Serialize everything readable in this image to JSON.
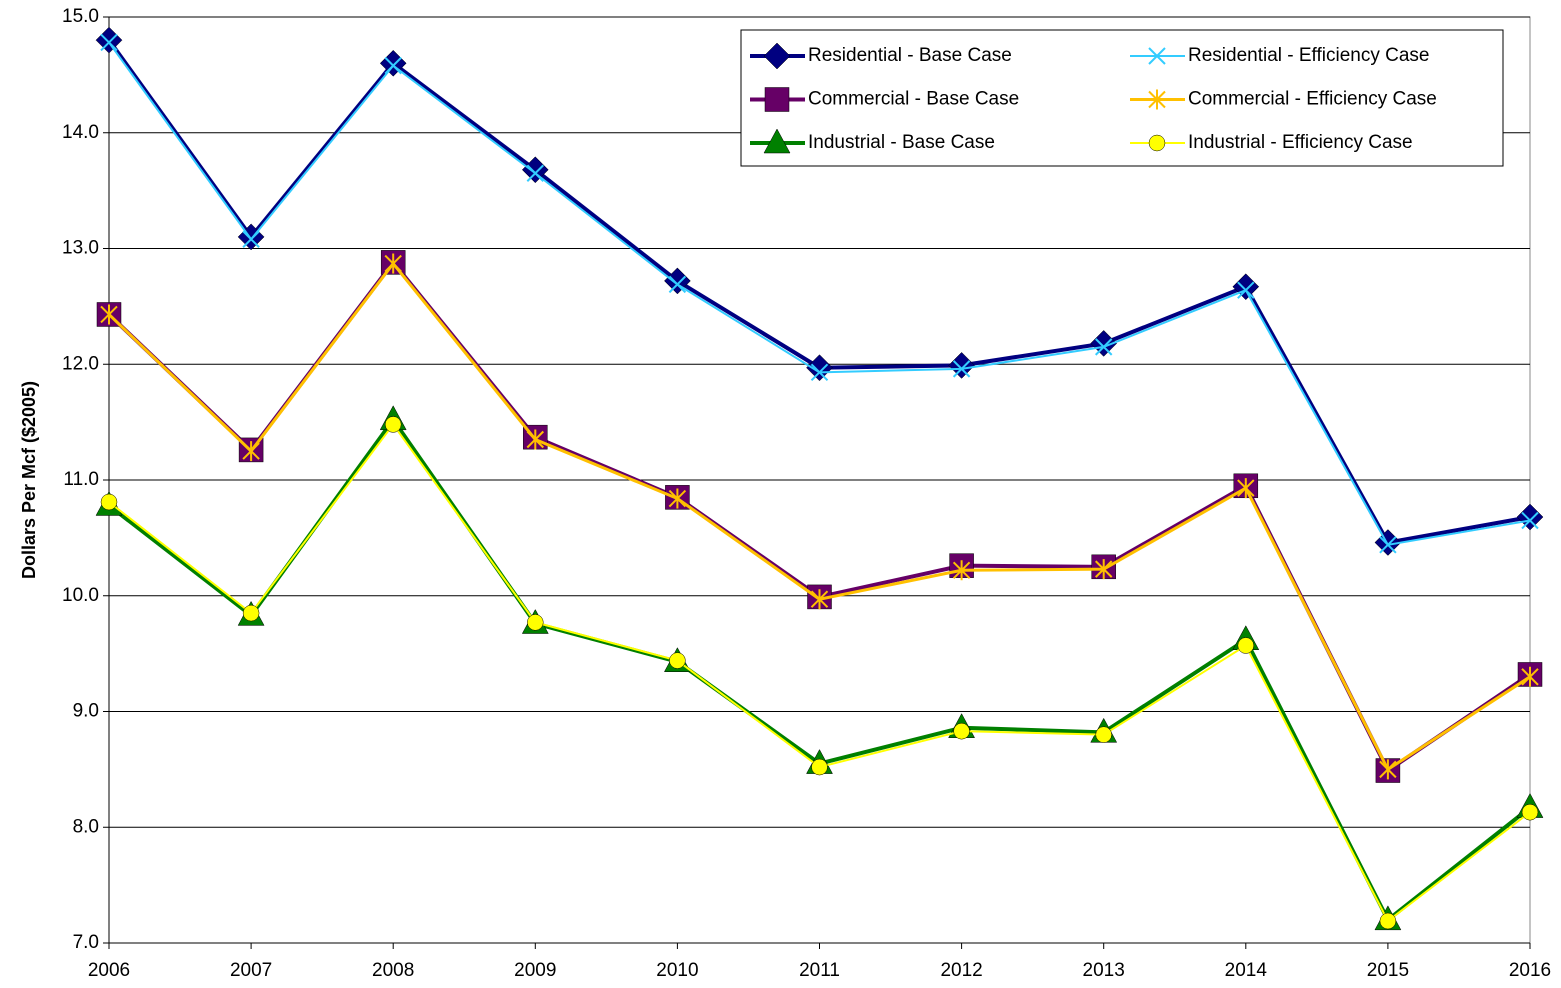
{
  "chart_data": {
    "type": "line",
    "y_label": "Dollars Per Mcf ($2005)",
    "categories": [
      "2006",
      "2007",
      "2008",
      "2009",
      "2010",
      "2011",
      "2012",
      "2013",
      "2014",
      "2015",
      "2016"
    ],
    "series": [
      {
        "name": "Residential - Base Case",
        "color": "#000080",
        "marker": "diamond",
        "values": [
          14.8,
          13.1,
          14.6,
          13.68,
          12.72,
          11.97,
          11.99,
          12.18,
          12.67,
          10.46,
          10.68
        ]
      },
      {
        "name": "Residential - Efficiency Case",
        "color": "#33ccff",
        "marker": "x",
        "values": [
          14.78,
          13.08,
          14.58,
          13.65,
          12.69,
          11.93,
          11.96,
          12.15,
          12.64,
          10.44,
          10.65
        ]
      },
      {
        "name": "Commercial - Base Case",
        "color": "#660066",
        "marker": "square",
        "values": [
          12.43,
          11.26,
          12.88,
          11.37,
          10.85,
          9.99,
          10.26,
          10.25,
          10.95,
          8.49,
          9.32
        ]
      },
      {
        "name": "Commercial - Efficiency Case",
        "color": "#ffc000",
        "marker": "asterisk",
        "values": [
          12.43,
          11.25,
          12.87,
          11.35,
          10.84,
          9.97,
          10.22,
          10.23,
          10.93,
          8.5,
          9.3
        ]
      },
      {
        "name": "Industrial - Base Case",
        "color": "#008000",
        "marker": "triangle",
        "values": [
          10.78,
          9.83,
          11.52,
          9.76,
          9.43,
          8.55,
          8.86,
          8.82,
          9.62,
          7.2,
          8.17
        ]
      },
      {
        "name": "Industrial - Efficiency Case",
        "color": "#ffff00",
        "marker": "circle",
        "values": [
          10.81,
          9.85,
          11.48,
          9.77,
          9.44,
          8.52,
          8.83,
          8.8,
          9.57,
          7.19,
          8.13
        ]
      }
    ],
    "ylim": [
      7,
      15
    ],
    "yticks": [
      {
        "value": 7,
        "label": "7.0"
      },
      {
        "value": 8,
        "label": "8.0"
      },
      {
        "value": 9,
        "label": "9.0"
      },
      {
        "value": 10,
        "label": "10.0"
      },
      {
        "value": 11,
        "label": "11.0"
      },
      {
        "value": 12,
        "label": "12.0"
      },
      {
        "value": 13,
        "label": "13.0"
      },
      {
        "value": 14,
        "label": "14.0"
      },
      {
        "value": 15,
        "label": "15.0"
      }
    ],
    "grid": true,
    "legend": "upper right"
  }
}
